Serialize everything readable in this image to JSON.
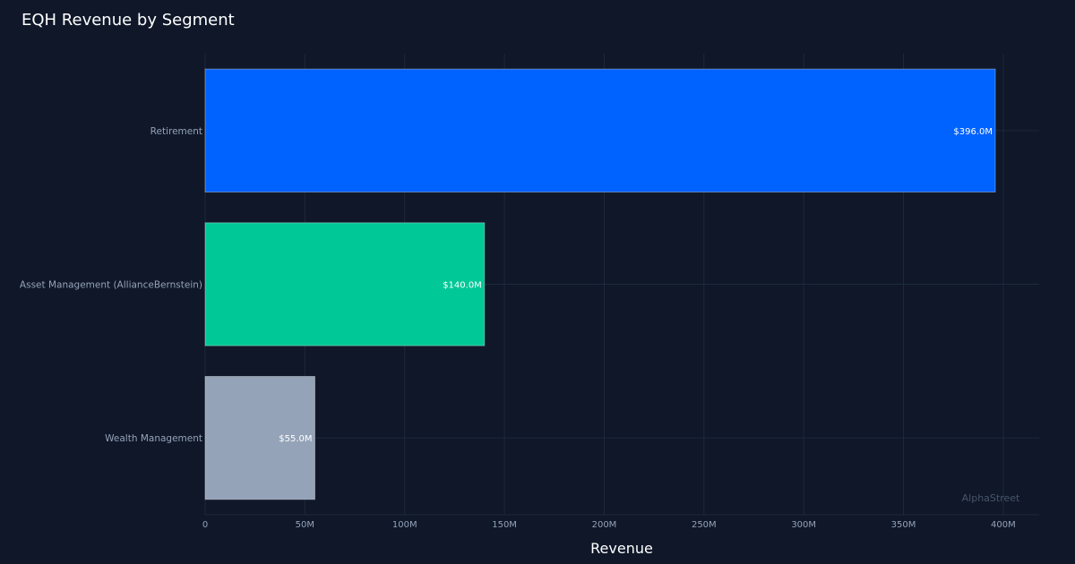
{
  "chart_data": {
    "type": "bar",
    "orientation": "horizontal",
    "title": "EQH Revenue by Segment",
    "xlabel": "Revenue",
    "ylabel": "",
    "categories": [
      "Retirement",
      "Asset Management (AllianceBernstein)",
      "Wealth Management"
    ],
    "values": [
      396.0,
      140.0,
      55.0
    ],
    "value_labels": [
      "$396.0M",
      "$140.0M",
      "$55.0M"
    ],
    "colors": [
      "#0062ff",
      "#00c896",
      "#94a3b8"
    ],
    "xlim": [
      0,
      418
    ],
    "x_ticks": [
      0,
      50,
      100,
      150,
      200,
      250,
      300,
      350,
      400
    ],
    "x_tick_labels": [
      "0",
      "50M",
      "100M",
      "150M",
      "200M",
      "250M",
      "300M",
      "350M",
      "400M"
    ],
    "grid": true,
    "watermark": "AlphaStreet"
  }
}
